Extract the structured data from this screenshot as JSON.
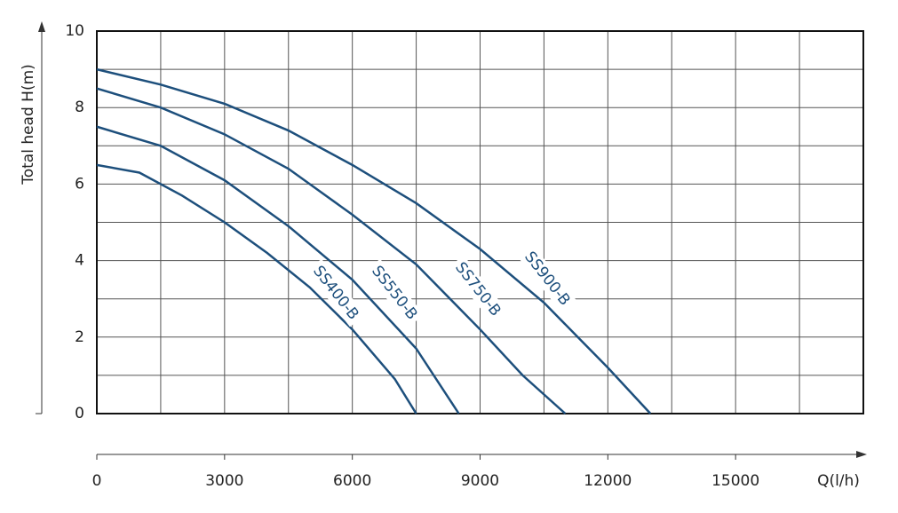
{
  "chart_data": {
    "type": "line",
    "x_label": "Q(l/h)",
    "y_label": "Total head  H(m)",
    "xlim": [
      0,
      18000
    ],
    "xticks": [
      0,
      3000,
      6000,
      9000,
      12000,
      15000
    ],
    "ylim": [
      0,
      10
    ],
    "yticks": [
      0,
      2,
      4,
      6,
      8,
      10
    ],
    "grid": true,
    "series": [
      {
        "name": "SS400-B",
        "color": "#1d4f7c",
        "x": [
          0,
          1000,
          2000,
          3000,
          4000,
          5000,
          6000,
          7000,
          7500
        ],
        "values": [
          6.5,
          6.3,
          5.7,
          5.0,
          4.2,
          3.3,
          2.2,
          0.9,
          0
        ]
      },
      {
        "name": "SS550-B",
        "color": "#1d4f7c",
        "x": [
          0,
          1500,
          3000,
          4500,
          6000,
          7500,
          8500
        ],
        "values": [
          7.5,
          7.0,
          6.1,
          4.9,
          3.5,
          1.7,
          0
        ]
      },
      {
        "name": "SS750-B",
        "color": "#1d4f7c",
        "x": [
          0,
          1500,
          3000,
          4500,
          6000,
          7500,
          9000,
          10000,
          11000
        ],
        "values": [
          8.5,
          8.0,
          7.3,
          6.4,
          5.2,
          3.9,
          2.2,
          1.0,
          0
        ]
      },
      {
        "name": "SS900-B",
        "color": "#1d4f7c",
        "x": [
          0,
          1500,
          3000,
          4500,
          6000,
          7500,
          9000,
          10500,
          12000,
          13000
        ],
        "values": [
          9.0,
          8.6,
          8.1,
          7.4,
          6.5,
          5.5,
          4.3,
          2.9,
          1.2,
          0
        ]
      }
    ]
  }
}
